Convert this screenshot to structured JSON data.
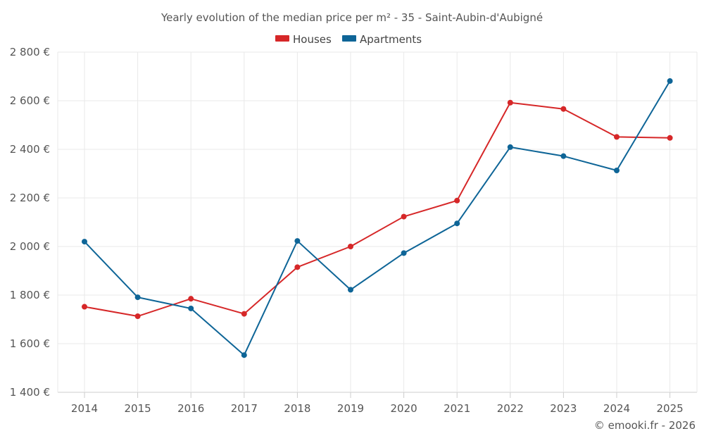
{
  "chart_data": {
    "type": "line",
    "title": "Yearly evolution of the median price per m² - 35 - Saint-Aubin-d'Aubigné",
    "categories": [
      "2014",
      "2015",
      "2016",
      "2017",
      "2018",
      "2019",
      "2020",
      "2021",
      "2022",
      "2023",
      "2024",
      "2025"
    ],
    "series": [
      {
        "name": "Houses",
        "color": "#d62728",
        "values": [
          1752,
          1713,
          1785,
          1723,
          1915,
          2000,
          2123,
          2189,
          2592,
          2566,
          2451,
          2447
        ]
      },
      {
        "name": "Apartments",
        "color": "#0e6597",
        "values": [
          2020,
          1791,
          1745,
          1553,
          2023,
          1822,
          1973,
          2095,
          2409,
          2372,
          2313,
          2681
        ]
      }
    ],
    "y_tick_labels": [
      "1 400 €",
      "1 600 €",
      "1 800 €",
      "2 000 €",
      "2 200 €",
      "2 400 €",
      "2 600 €",
      "2 800 €"
    ],
    "y_ticks": [
      1400,
      1600,
      1800,
      2000,
      2200,
      2400,
      2600,
      2800
    ],
    "ylim": [
      1400,
      2800
    ],
    "xlabel": "",
    "ylabel": "",
    "legend_position": "top-center",
    "grid": true
  },
  "credit": "© emooki.fr - 2026"
}
